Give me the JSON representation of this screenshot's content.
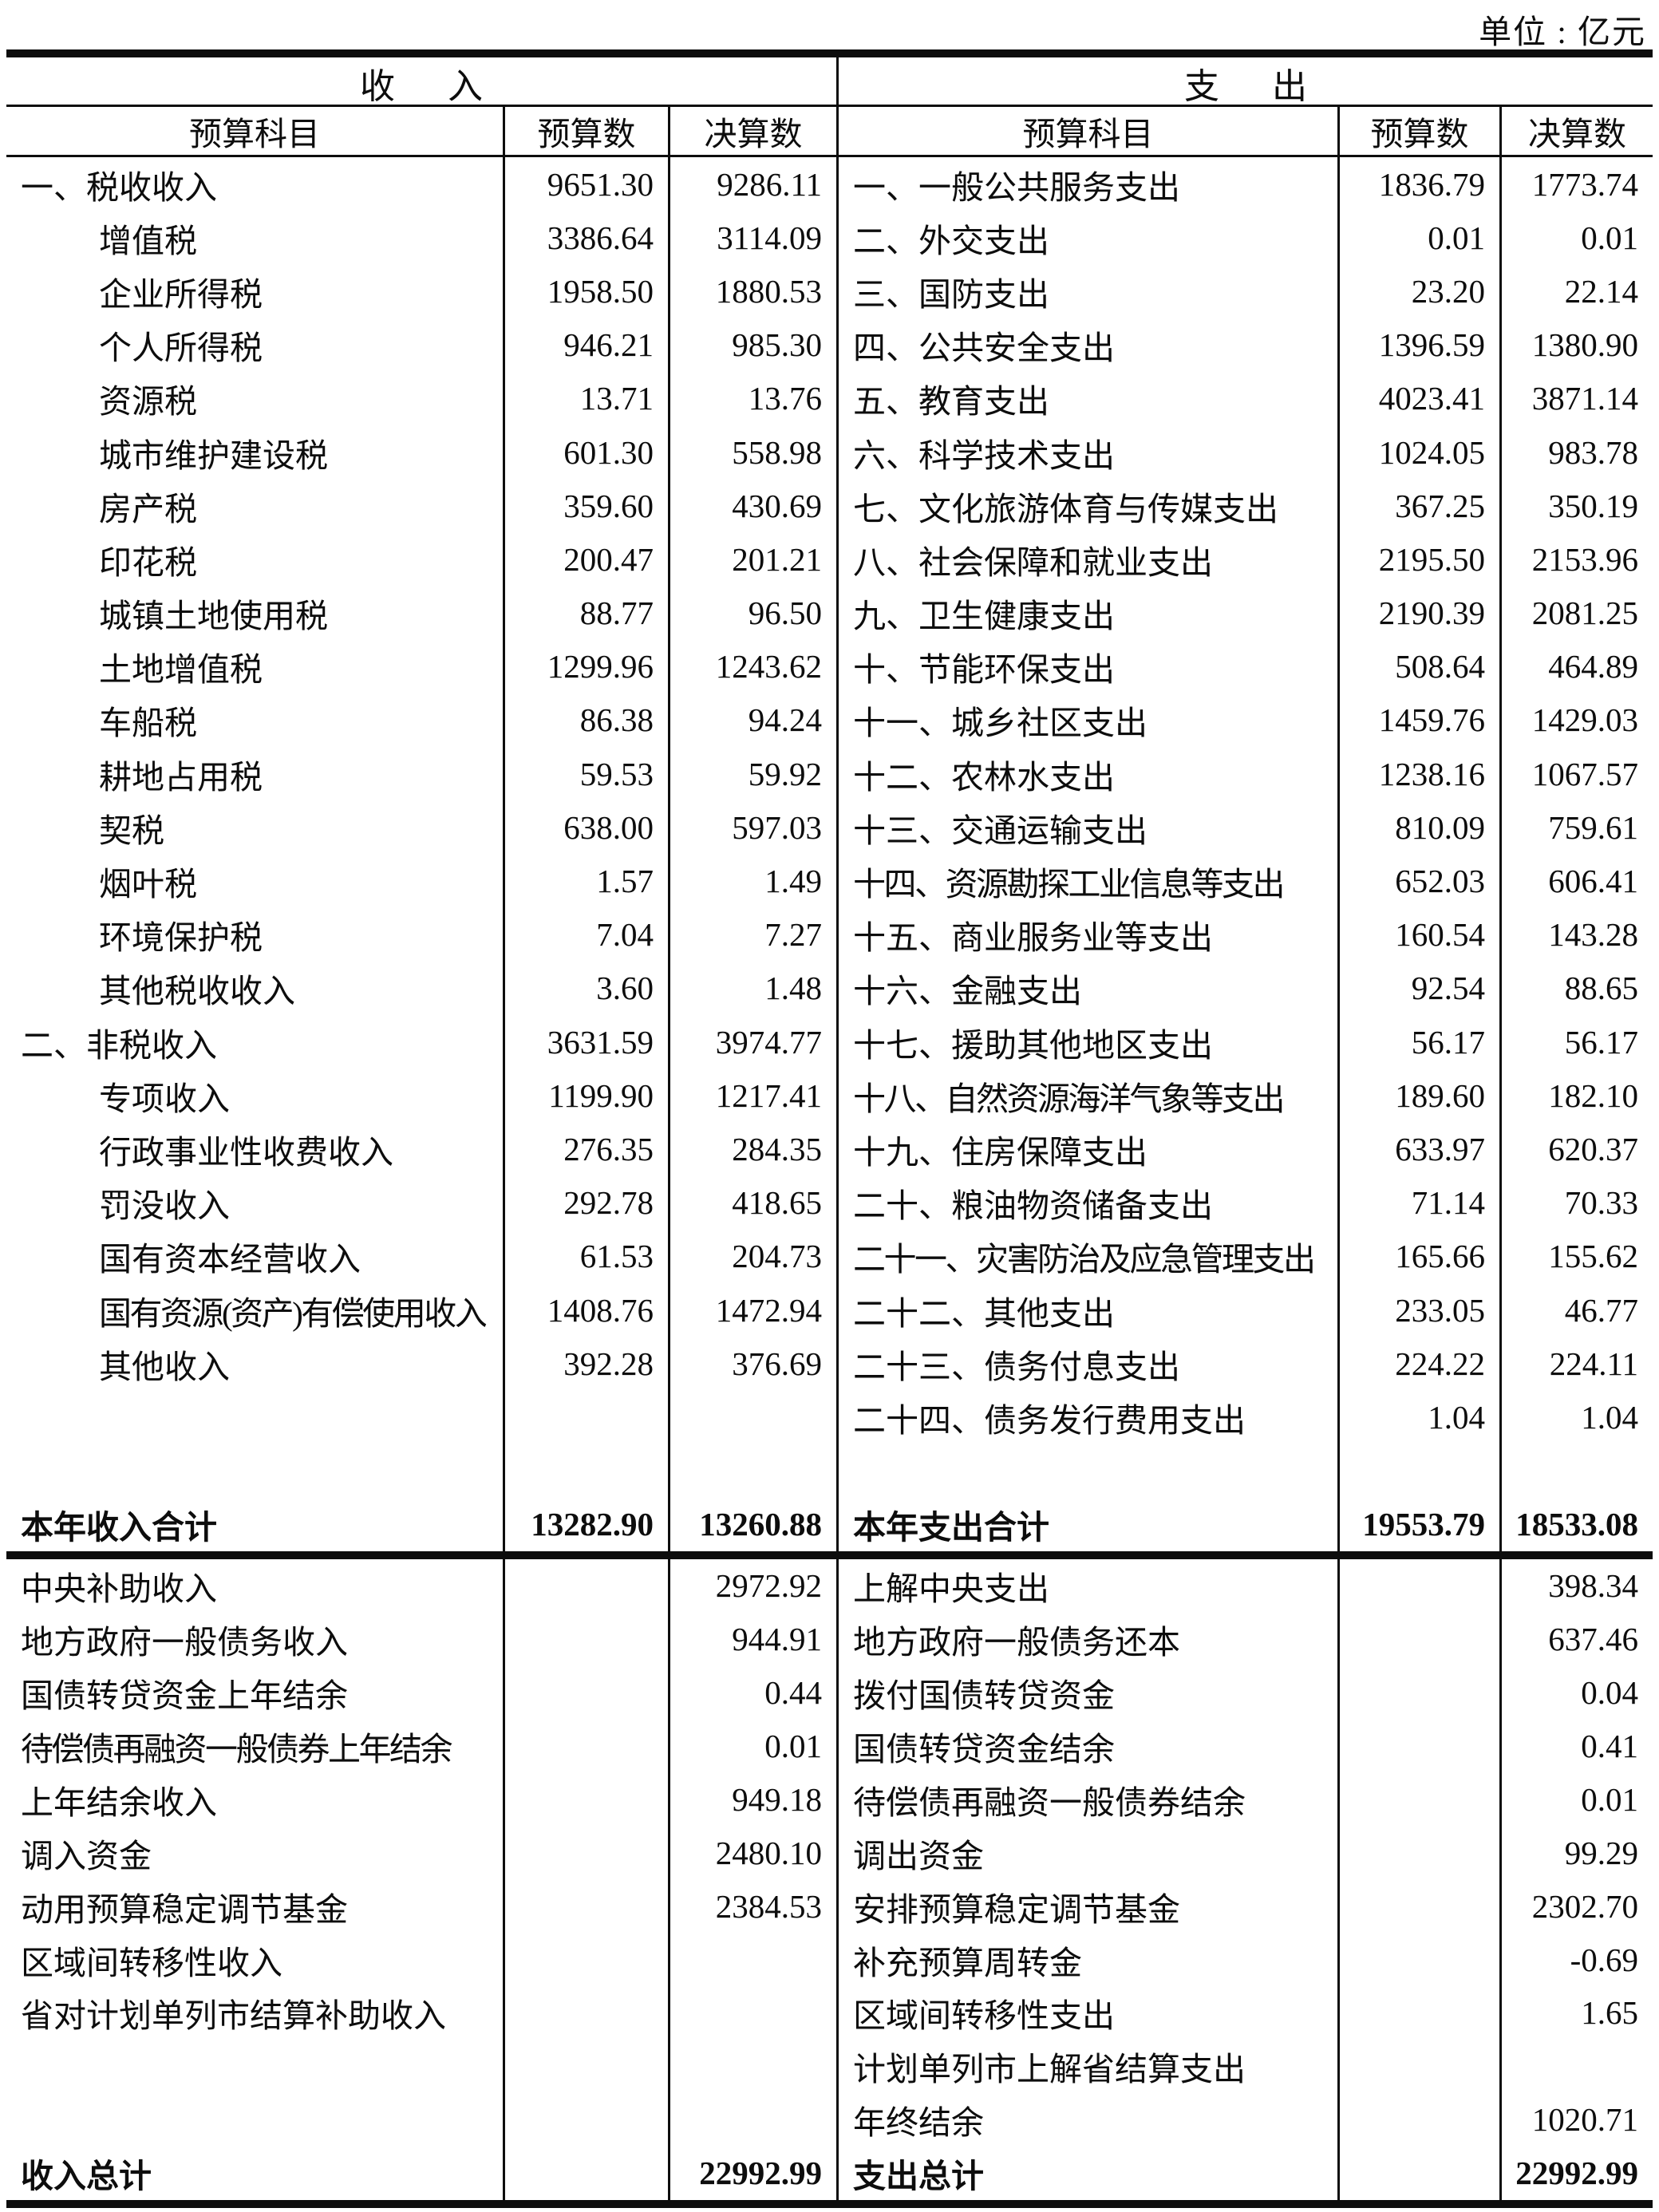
{
  "unit_label": "单位 : 亿元",
  "income": {
    "title": "收入",
    "columns": [
      "预算科目",
      "预算数",
      "决算数"
    ],
    "items": [
      {
        "label": "一、税收收入",
        "level": 1,
        "budget": "9651.30",
        "final": "9286.11"
      },
      {
        "label": "增值税",
        "level": 2,
        "budget": "3386.64",
        "final": "3114.09"
      },
      {
        "label": "企业所得税",
        "level": 2,
        "budget": "1958.50",
        "final": "1880.53"
      },
      {
        "label": "个人所得税",
        "level": 2,
        "budget": "946.21",
        "final": "985.30"
      },
      {
        "label": "资源税",
        "level": 2,
        "budget": "13.71",
        "final": "13.76"
      },
      {
        "label": "城市维护建设税",
        "level": 2,
        "budget": "601.30",
        "final": "558.98"
      },
      {
        "label": "房产税",
        "level": 2,
        "budget": "359.60",
        "final": "430.69"
      },
      {
        "label": "印花税",
        "level": 2,
        "budget": "200.47",
        "final": "201.21"
      },
      {
        "label": "城镇土地使用税",
        "level": 2,
        "budget": "88.77",
        "final": "96.50"
      },
      {
        "label": "土地增值税",
        "level": 2,
        "budget": "1299.96",
        "final": "1243.62"
      },
      {
        "label": "车船税",
        "level": 2,
        "budget": "86.38",
        "final": "94.24"
      },
      {
        "label": "耕地占用税",
        "level": 2,
        "budget": "59.53",
        "final": "59.92"
      },
      {
        "label": "契税",
        "level": 2,
        "budget": "638.00",
        "final": "597.03"
      },
      {
        "label": "烟叶税",
        "level": 2,
        "budget": "1.57",
        "final": "1.49"
      },
      {
        "label": "环境保护税",
        "level": 2,
        "budget": "7.04",
        "final": "7.27"
      },
      {
        "label": "其他税收收入",
        "level": 2,
        "budget": "3.60",
        "final": "1.48"
      },
      {
        "label": "二、非税收入",
        "level": 1,
        "budget": "3631.59",
        "final": "3974.77"
      },
      {
        "label": "专项收入",
        "level": 2,
        "budget": "1199.90",
        "final": "1217.41"
      },
      {
        "label": "行政事业性收费收入",
        "level": 2,
        "budget": "276.35",
        "final": "284.35"
      },
      {
        "label": "罚没收入",
        "level": 2,
        "budget": "292.78",
        "final": "418.65"
      },
      {
        "label": "国有资本经营收入",
        "level": 2,
        "budget": "61.53",
        "final": "204.73"
      },
      {
        "label": "国有资源(资产)有偿使用收入",
        "level": 2,
        "budget": "1408.76",
        "final": "1472.94"
      },
      {
        "label": "其他收入",
        "level": 2,
        "budget": "392.28",
        "final": "376.69"
      }
    ],
    "total": {
      "label": "本年收入合计",
      "budget": "13282.90",
      "final": "13260.88"
    },
    "transfers": [
      {
        "label": "中央补助收入",
        "final": "2972.92"
      },
      {
        "label": "地方政府一般债务收入",
        "final": "944.91"
      },
      {
        "label": "国债转贷资金上年结余",
        "final": "0.44"
      },
      {
        "label": "待偿债再融资一般债券上年结余",
        "final": "0.01"
      },
      {
        "label": "上年结余收入",
        "final": "949.18"
      },
      {
        "label": "调入资金",
        "final": "2480.10"
      },
      {
        "label": "动用预算稳定调节基金",
        "final": "2384.53"
      },
      {
        "label": "区域间转移性收入",
        "final": ""
      },
      {
        "label": "省对计划单列市结算补助收入",
        "final": ""
      }
    ],
    "grand_total": {
      "label": "收入总计",
      "final": "22992.99"
    }
  },
  "expenditure": {
    "title": "支出",
    "columns": [
      "预算科目",
      "预算数",
      "决算数"
    ],
    "items": [
      {
        "label": "一、一般公共服务支出",
        "level": 1,
        "budget": "1836.79",
        "final": "1773.74"
      },
      {
        "label": "二、外交支出",
        "level": 1,
        "budget": "0.01",
        "final": "0.01"
      },
      {
        "label": "三、国防支出",
        "level": 1,
        "budget": "23.20",
        "final": "22.14"
      },
      {
        "label": "四、公共安全支出",
        "level": 1,
        "budget": "1396.59",
        "final": "1380.90"
      },
      {
        "label": "五、教育支出",
        "level": 1,
        "budget": "4023.41",
        "final": "3871.14"
      },
      {
        "label": "六、科学技术支出",
        "level": 1,
        "budget": "1024.05",
        "final": "983.78"
      },
      {
        "label": "七、文化旅游体育与传媒支出",
        "level": 1,
        "budget": "367.25",
        "final": "350.19"
      },
      {
        "label": "八、社会保障和就业支出",
        "level": 1,
        "budget": "2195.50",
        "final": "2153.96"
      },
      {
        "label": "九、卫生健康支出",
        "level": 1,
        "budget": "2190.39",
        "final": "2081.25"
      },
      {
        "label": "十、节能环保支出",
        "level": 1,
        "budget": "508.64",
        "final": "464.89"
      },
      {
        "label": "十一、城乡社区支出",
        "level": 1,
        "budget": "1459.76",
        "final": "1429.03"
      },
      {
        "label": "十二、农林水支出",
        "level": 1,
        "budget": "1238.16",
        "final": "1067.57"
      },
      {
        "label": "十三、交通运输支出",
        "level": 1,
        "budget": "810.09",
        "final": "759.61"
      },
      {
        "label": "十四、资源勘探工业信息等支出",
        "level": 1,
        "budget": "652.03",
        "final": "606.41"
      },
      {
        "label": "十五、商业服务业等支出",
        "level": 1,
        "budget": "160.54",
        "final": "143.28"
      },
      {
        "label": "十六、金融支出",
        "level": 1,
        "budget": "92.54",
        "final": "88.65"
      },
      {
        "label": "十七、援助其他地区支出",
        "level": 1,
        "budget": "56.17",
        "final": "56.17"
      },
      {
        "label": "十八、自然资源海洋气象等支出",
        "level": 1,
        "budget": "189.60",
        "final": "182.10"
      },
      {
        "label": "十九、住房保障支出",
        "level": 1,
        "budget": "633.97",
        "final": "620.37"
      },
      {
        "label": "二十、粮油物资储备支出",
        "level": 1,
        "budget": "71.14",
        "final": "70.33"
      },
      {
        "label": "二十一、灾害防治及应急管理支出",
        "level": 1,
        "budget": "165.66",
        "final": "155.62"
      },
      {
        "label": "二十二、其他支出",
        "level": 1,
        "budget": "233.05",
        "final": "46.77"
      },
      {
        "label": "二十三、债务付息支出",
        "level": 1,
        "budget": "224.22",
        "final": "224.11"
      },
      {
        "label": "二十四、债务发行费用支出",
        "level": 1,
        "budget": "1.04",
        "final": "1.04"
      }
    ],
    "total": {
      "label": "本年支出合计",
      "budget": "19553.79",
      "final": "18533.08"
    },
    "transfers": [
      {
        "label": "上解中央支出",
        "final": "398.34"
      },
      {
        "label": "地方政府一般债务还本",
        "final": "637.46"
      },
      {
        "label": "拨付国债转贷资金",
        "final": "0.04"
      },
      {
        "label": "国债转贷资金结余",
        "final": "0.41"
      },
      {
        "label": "待偿债再融资一般债券结余",
        "final": "0.01"
      },
      {
        "label": "调出资金",
        "final": "99.29"
      },
      {
        "label": "安排预算稳定调节基金",
        "final": "2302.70"
      },
      {
        "label": "补充预算周转金",
        "final": "-0.69"
      },
      {
        "label": "区域间转移性支出",
        "final": "1.65"
      },
      {
        "label": "计划单列市上解省结算支出",
        "final": ""
      },
      {
        "label": "年终结余",
        "final": "1020.71"
      }
    ],
    "grand_total": {
      "label": "支出总计",
      "final": "22992.99"
    }
  }
}
